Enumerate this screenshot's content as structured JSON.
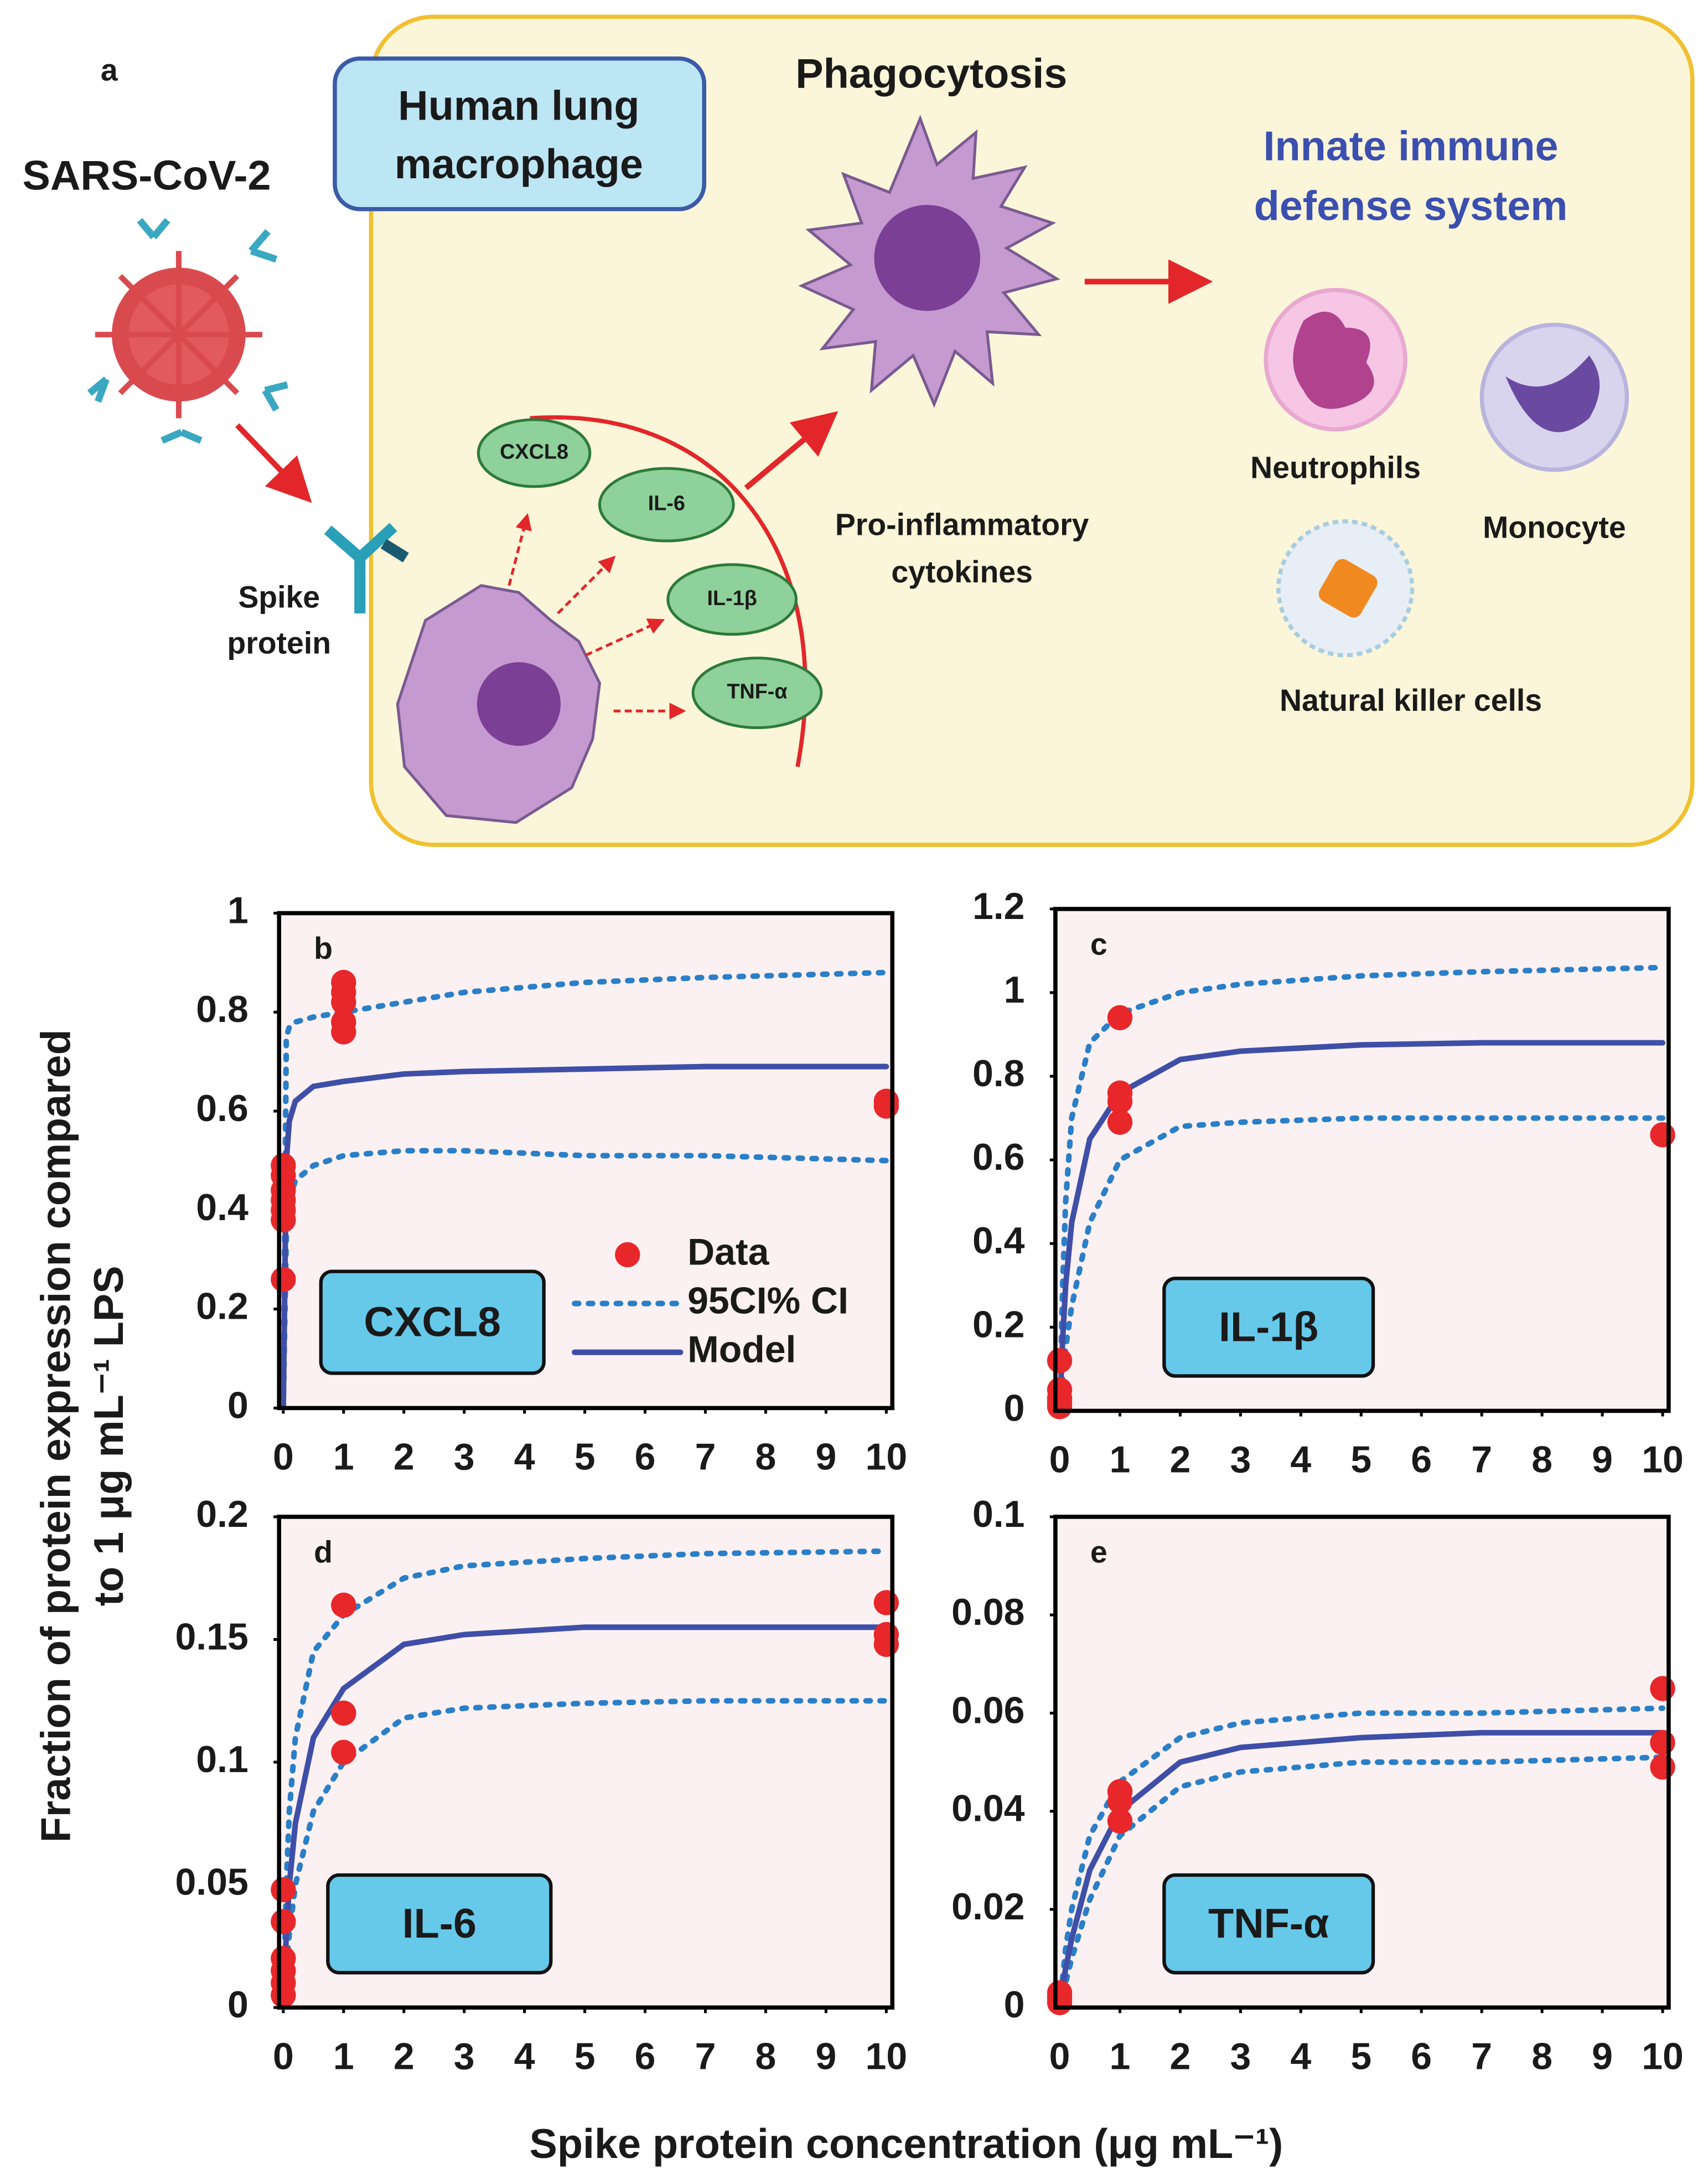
{
  "diagram": {
    "panel_label": "a",
    "virus": "SARS-CoV-2",
    "cell_box": [
      "Human lung",
      "macrophage"
    ],
    "phagocytosis": "Phagocytosis",
    "innate": [
      "Innate immune",
      "defense system"
    ],
    "spike": [
      "Spike",
      "protein"
    ],
    "cytokines": [
      "CXCL8",
      "IL-6",
      "IL-1β",
      "TNF-α"
    ],
    "pro_inflammatory": [
      "Pro-inflammatory",
      "cytokines"
    ],
    "neutrophils": "Neutrophils",
    "monocyte": "Monocyte",
    "nk": "Natural killer cells"
  },
  "axis_labels": {
    "y": [
      "Fraction of protein expression compared",
      "to 1 μg mL⁻¹ LPS"
    ],
    "x": "Spike protein concentration (μg mL⁻¹)"
  },
  "chart_data": [
    {
      "type": "scatter",
      "panel_label": "b",
      "box_label": "CXCL8",
      "xlim": [
        -0.07,
        10.1
      ],
      "ylim": [
        0,
        1
      ],
      "xticks": [
        0,
        1,
        2,
        3,
        4,
        5,
        6,
        7,
        8,
        9,
        10
      ],
      "yticks": [
        0,
        0.2,
        0.4,
        0.6,
        0.8,
        1
      ],
      "legend": true,
      "x": [
        0,
        0.05,
        0.1,
        0.2,
        0.5,
        1,
        2,
        3,
        5,
        7,
        10
      ],
      "series": [
        {
          "name": "Data",
          "color": "#e8272b",
          "style": "points",
          "x": [
            0,
            0,
            0,
            0,
            0,
            0,
            0,
            1,
            1,
            1,
            1,
            1,
            10,
            10
          ],
          "values": [
            0.26,
            0.38,
            0.4,
            0.42,
            0.44,
            0.47,
            0.49,
            0.76,
            0.78,
            0.82,
            0.84,
            0.86,
            0.61,
            0.62
          ]
        },
        {
          "name": "95CI% CI",
          "color": "#2b7fc7",
          "style": "dotted",
          "upper": [
            0,
            0.75,
            0.77,
            0.78,
            0.79,
            0.8,
            0.82,
            0.84,
            0.86,
            0.87,
            0.88
          ],
          "lower": [
            0,
            0.35,
            0.42,
            0.46,
            0.49,
            0.51,
            0.52,
            0.52,
            0.51,
            0.51,
            0.5
          ]
        },
        {
          "name": "Model",
          "color": "#3f4fa8",
          "style": "solid",
          "values": [
            0,
            0.5,
            0.58,
            0.62,
            0.65,
            0.66,
            0.675,
            0.68,
            0.685,
            0.69,
            0.69
          ]
        }
      ]
    },
    {
      "type": "scatter",
      "panel_label": "c",
      "box_label": "IL-1β",
      "xlim": [
        -0.07,
        10.1
      ],
      "ylim": [
        0,
        1.2
      ],
      "xticks": [
        0,
        1,
        2,
        3,
        4,
        5,
        6,
        7,
        8,
        9,
        10
      ],
      "yticks": [
        0,
        0.2,
        0.4,
        0.6,
        0.8,
        1,
        1.2
      ],
      "x": [
        0,
        0.05,
        0.1,
        0.2,
        0.5,
        1,
        2,
        3,
        5,
        7,
        10
      ],
      "series": [
        {
          "color": "#e8272b",
          "style": "points",
          "x": [
            0,
            0,
            0,
            0,
            0,
            1,
            1,
            1,
            1,
            10
          ],
          "values": [
            0.12,
            0.05,
            0.03,
            0.02,
            0.01,
            0.94,
            0.76,
            0.74,
            0.69,
            0.66
          ]
        },
        {
          "color": "#2b7fc7",
          "style": "dotted",
          "upper": [
            0,
            0.3,
            0.5,
            0.7,
            0.88,
            0.95,
            1,
            1.02,
            1.04,
            1.05,
            1.06
          ],
          "lower": [
            0,
            0.08,
            0.15,
            0.25,
            0.45,
            0.6,
            0.68,
            0.69,
            0.7,
            0.7,
            0.7
          ]
        },
        {
          "color": "#3f4fa8",
          "style": "solid",
          "values": [
            0,
            0.17,
            0.3,
            0.45,
            0.65,
            0.76,
            0.84,
            0.86,
            0.875,
            0.88,
            0.88
          ]
        }
      ]
    },
    {
      "type": "scatter",
      "panel_label": "d",
      "box_label": "IL-6",
      "xlim": [
        -0.07,
        10.1
      ],
      "ylim": [
        0,
        0.2
      ],
      "xticks": [
        0,
        1,
        2,
        3,
        4,
        5,
        6,
        7,
        8,
        9,
        10
      ],
      "yticks": [
        0,
        0.05,
        0.1,
        0.15,
        0.2
      ],
      "x": [
        0,
        0.05,
        0.1,
        0.2,
        0.5,
        1,
        2,
        3,
        5,
        7,
        10
      ],
      "series": [
        {
          "color": "#e8272b",
          "style": "points",
          "x": [
            0,
            0,
            0,
            0,
            0,
            0,
            1,
            1,
            1,
            10,
            10,
            10
          ],
          "values": [
            0.048,
            0.035,
            0.02,
            0.015,
            0.01,
            0.005,
            0.164,
            0.12,
            0.104,
            0.165,
            0.152,
            0.148
          ]
        },
        {
          "color": "#2b7fc7",
          "style": "dotted",
          "upper": [
            0,
            0.05,
            0.08,
            0.11,
            0.145,
            0.16,
            0.175,
            0.18,
            0.183,
            0.185,
            0.186
          ],
          "lower": [
            0,
            0.015,
            0.03,
            0.05,
            0.08,
            0.1,
            0.118,
            0.122,
            0.124,
            0.125,
            0.125
          ]
        },
        {
          "color": "#3f4fa8",
          "style": "solid",
          "values": [
            0,
            0.03,
            0.05,
            0.075,
            0.11,
            0.13,
            0.148,
            0.152,
            0.155,
            0.155,
            0.155
          ]
        }
      ]
    },
    {
      "type": "scatter",
      "panel_label": "e",
      "box_label": "TNF-α",
      "xlim": [
        -0.07,
        10.1
      ],
      "ylim": [
        0,
        0.1
      ],
      "xticks": [
        0,
        1,
        2,
        3,
        4,
        5,
        6,
        7,
        8,
        9,
        10
      ],
      "yticks": [
        0,
        0.02,
        0.04,
        0.06,
        0.08,
        0.1
      ],
      "x": [
        0,
        0.05,
        0.1,
        0.2,
        0.5,
        1,
        2,
        3,
        5,
        7,
        10
      ],
      "series": [
        {
          "color": "#e8272b",
          "style": "points",
          "x": [
            0,
            0,
            0,
            1,
            1,
            1,
            10,
            10,
            10
          ],
          "values": [
            0.002,
            0.001,
            0.003,
            0.044,
            0.042,
            0.038,
            0.065,
            0.054,
            0.049
          ]
        },
        {
          "color": "#2b7fc7",
          "style": "dotted",
          "upper": [
            0,
            0.006,
            0.012,
            0.02,
            0.035,
            0.046,
            0.055,
            0.058,
            0.06,
            0.06,
            0.061
          ],
          "lower": [
            0,
            0.002,
            0.005,
            0.01,
            0.022,
            0.035,
            0.045,
            0.048,
            0.05,
            0.05,
            0.051
          ]
        },
        {
          "color": "#3f4fa8",
          "style": "solid",
          "values": [
            0,
            0.004,
            0.008,
            0.014,
            0.028,
            0.04,
            0.05,
            0.053,
            0.055,
            0.056,
            0.056
          ]
        }
      ]
    }
  ]
}
